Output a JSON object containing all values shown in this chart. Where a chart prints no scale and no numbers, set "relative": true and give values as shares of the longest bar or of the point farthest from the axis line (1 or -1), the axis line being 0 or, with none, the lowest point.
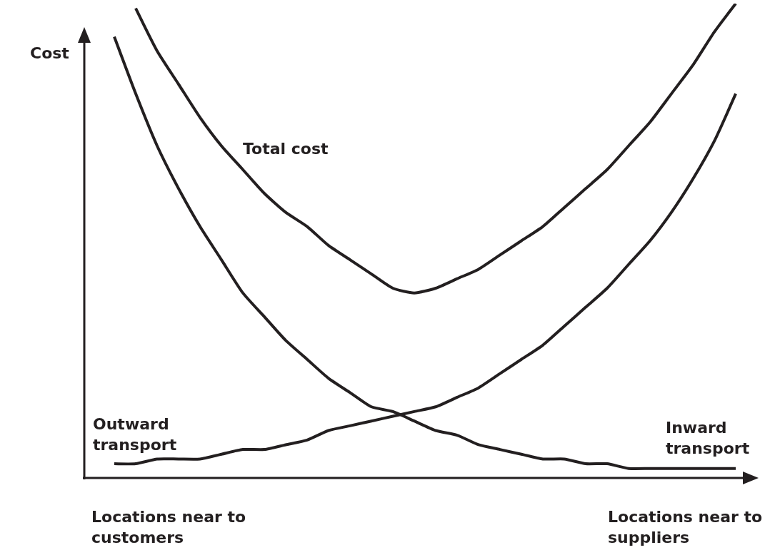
{
  "chart_data": {
    "type": "line",
    "relative": true,
    "ylabel": "Cost",
    "categories": [
      null,
      null,
      null,
      null,
      null,
      null,
      null,
      null,
      null,
      null,
      null,
      null,
      null,
      null,
      null,
      null,
      null,
      null,
      null,
      null,
      null,
      null,
      null,
      null,
      null,
      null,
      null,
      null,
      null,
      null
    ],
    "series": [
      {
        "name": "Total cost",
        "color": "#231f20",
        "values": [
          null,
          0.99,
          0.9,
          0.83,
          0.76,
          0.7,
          0.65,
          0.6,
          0.56,
          0.53,
          0.49,
          0.46,
          0.43,
          0.4,
          0.39,
          0.4,
          0.42,
          0.44,
          0.47,
          0.5,
          0.53,
          0.57,
          0.61,
          0.65,
          0.7,
          0.75,
          0.81,
          0.87,
          0.94,
          1.0
        ]
      },
      {
        "name": "Outward transport",
        "color": "#231f20",
        "values": [
          0.03,
          0.03,
          0.04,
          0.04,
          0.04,
          0.05,
          0.06,
          0.06,
          0.07,
          0.08,
          0.1,
          0.11,
          0.12,
          0.13,
          0.14,
          0.15,
          0.17,
          0.19,
          0.22,
          0.25,
          0.28,
          0.32,
          0.36,
          0.4,
          0.45,
          0.5,
          0.56,
          0.63,
          0.71,
          0.81
        ]
      },
      {
        "name": "Inward transport",
        "color": "#231f20",
        "values": [
          0.93,
          0.81,
          0.7,
          0.61,
          0.53,
          0.46,
          0.39,
          0.34,
          0.29,
          0.25,
          0.21,
          0.18,
          0.15,
          0.14,
          0.12,
          0.1,
          0.09,
          0.07,
          0.06,
          0.05,
          0.04,
          0.04,
          0.03,
          0.03,
          0.02,
          0.02,
          0.02,
          0.02,
          0.02,
          0.02
        ]
      }
    ],
    "annotations": [
      "Locations near to customers",
      "Locations near to suppliers"
    ]
  }
}
